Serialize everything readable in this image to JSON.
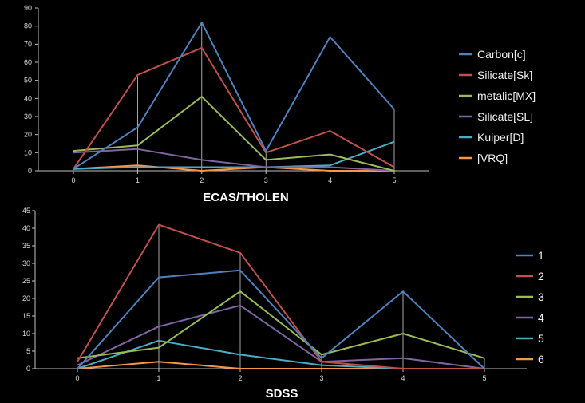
{
  "chart_data": [
    {
      "type": "line",
      "title": "ECAS/THOLEN",
      "x": [
        0,
        1,
        2,
        3,
        4,
        5
      ],
      "ylim": [
        0,
        90
      ],
      "yticks": [
        0,
        10,
        20,
        30,
        40,
        50,
        60,
        70,
        80,
        90
      ],
      "legend_position": "right",
      "series": [
        {
          "name": "Carbon[c]",
          "color": "#4F81BD",
          "values": [
            1,
            24,
            82,
            11,
            74,
            34
          ]
        },
        {
          "name": "Silicate[Sk]",
          "color": "#C0504D",
          "values": [
            1,
            53,
            68,
            10,
            22,
            2
          ]
        },
        {
          "name": "metalic[MX]",
          "color": "#9BBB59",
          "values": [
            11,
            14,
            41,
            6,
            9,
            0
          ]
        },
        {
          "name": "Silicate[SL]",
          "color": "#8064A2",
          "values": [
            10,
            12,
            6,
            2,
            2,
            0
          ]
        },
        {
          "name": "Kuiper[D]",
          "color": "#4BACC6",
          "values": [
            1,
            2,
            2,
            2,
            3,
            16
          ]
        },
        {
          "name": "[VRQ]",
          "color": "#F79646",
          "values": [
            1,
            3,
            0,
            2,
            0,
            0
          ]
        }
      ]
    },
    {
      "type": "line",
      "title": "SDSS",
      "x": [
        0,
        1,
        2,
        3,
        4,
        5
      ],
      "ylim": [
        0,
        45
      ],
      "yticks": [
        0,
        5,
        10,
        15,
        20,
        25,
        30,
        35,
        40,
        45
      ],
      "legend_position": "right",
      "series": [
        {
          "name": "1",
          "color": "#4F81BD",
          "values": [
            0,
            26,
            28,
            3,
            22,
            0
          ]
        },
        {
          "name": "2",
          "color": "#C0504D",
          "values": [
            2,
            41,
            33,
            2,
            0,
            0
          ]
        },
        {
          "name": "3",
          "color": "#9BBB59",
          "values": [
            3,
            6,
            22,
            4,
            10,
            3
          ]
        },
        {
          "name": "4",
          "color": "#8064A2",
          "values": [
            1,
            12,
            18,
            2,
            3,
            0
          ]
        },
        {
          "name": "5",
          "color": "#4BACC6",
          "values": [
            0,
            8,
            4,
            1,
            0,
            0
          ]
        },
        {
          "name": "6",
          "color": "#F79646",
          "values": [
            0,
            2,
            0,
            0,
            0,
            0
          ]
        }
      ]
    }
  ]
}
